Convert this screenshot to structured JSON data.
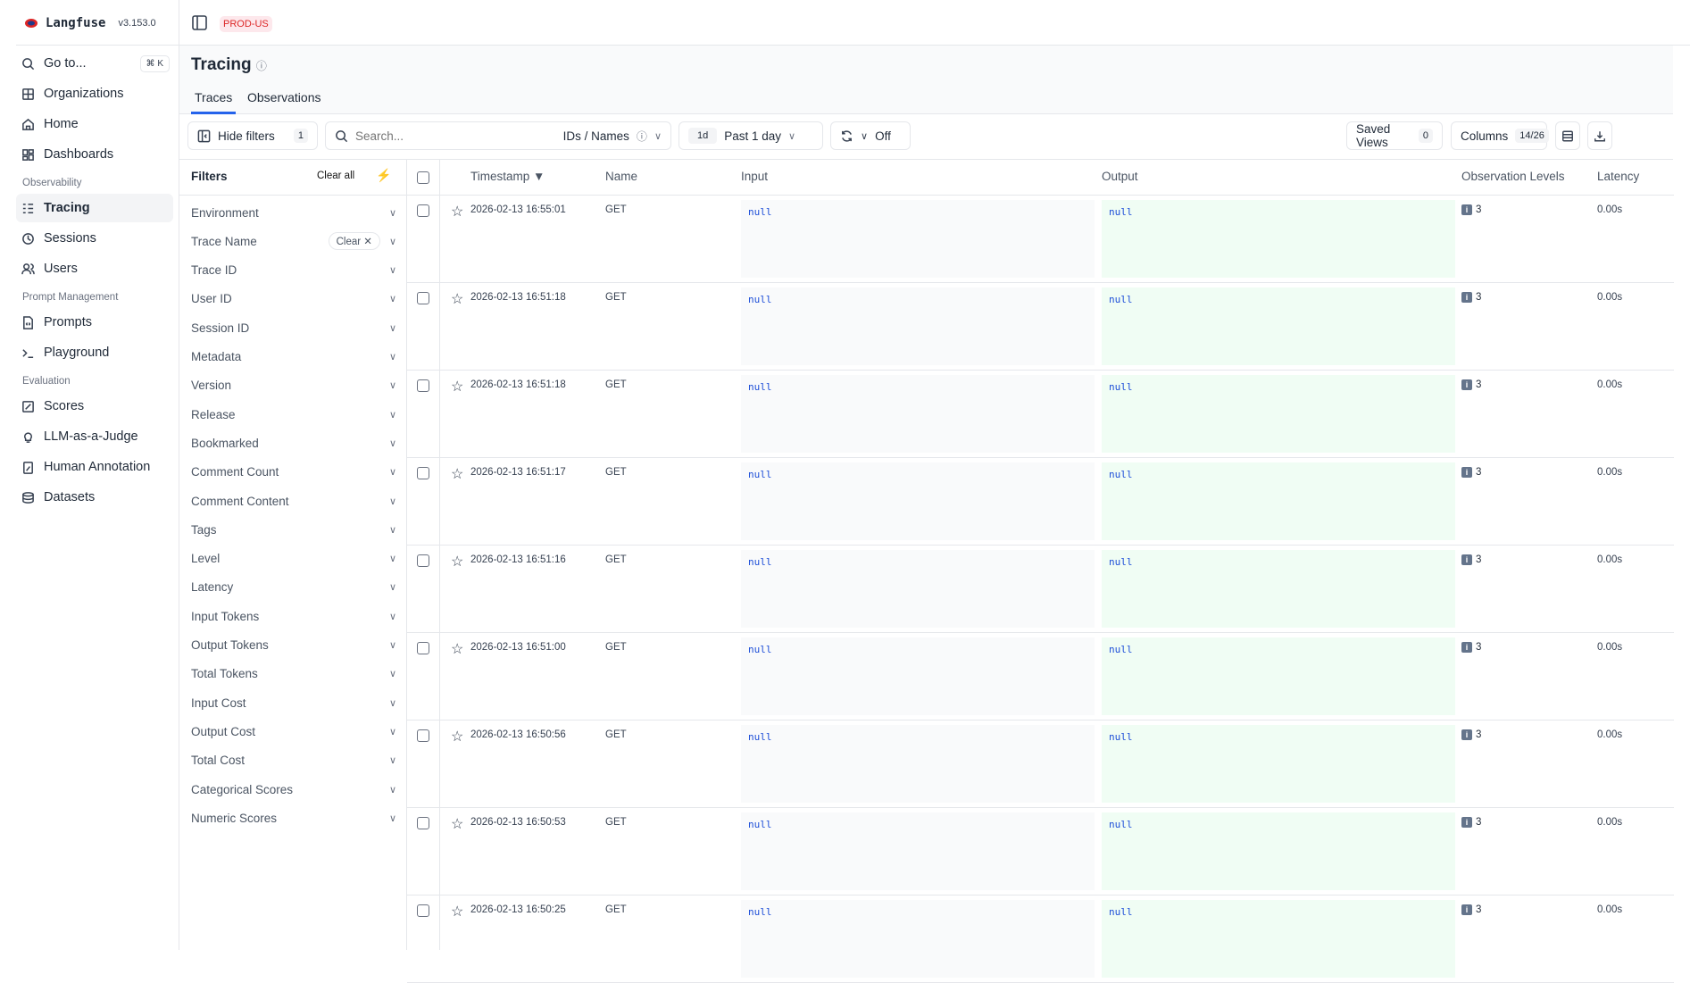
{
  "app": {
    "name": "Langfuse",
    "version": "v3.153.0",
    "environment": "PROD-US"
  },
  "sidebar": {
    "goto": {
      "label": "Go to...",
      "shortcut": "⌘ K"
    },
    "top": [
      {
        "label": "Organizations",
        "icon": "grid-icon"
      },
      {
        "label": "Home",
        "icon": "home-icon"
      },
      {
        "label": "Dashboards",
        "icon": "dashboard-icon"
      }
    ],
    "sections": [
      {
        "label": "Observability",
        "items": [
          {
            "label": "Tracing",
            "active": true
          },
          {
            "label": "Sessions"
          },
          {
            "label": "Users"
          }
        ]
      },
      {
        "label": "Prompt Management",
        "items": [
          {
            "label": "Prompts"
          },
          {
            "label": "Playground"
          }
        ]
      },
      {
        "label": "Evaluation",
        "items": [
          {
            "label": "Scores"
          },
          {
            "label": "LLM-as-a-Judge"
          },
          {
            "label": "Human Annotation"
          },
          {
            "label": "Datasets"
          }
        ]
      }
    ]
  },
  "page": {
    "title": "Tracing",
    "tabs": [
      {
        "label": "Traces",
        "active": true
      },
      {
        "label": "Observations"
      }
    ]
  },
  "toolbar": {
    "hide_filters": "Hide filters",
    "filter_count": "1",
    "search_placeholder": "Search...",
    "search_mode": "IDs / Names",
    "range_badge": "1d",
    "range_label": "Past 1 day",
    "refresh_label": "Off",
    "saved_views": "Saved Views",
    "saved_views_count": "0",
    "columns": "Columns",
    "columns_count": "14/26"
  },
  "filters": {
    "title": "Filters",
    "clear_all": "Clear all",
    "clear_pill": "Clear",
    "items": [
      "Environment",
      "Trace Name",
      "Trace ID",
      "User ID",
      "Session ID",
      "Metadata",
      "Version",
      "Release",
      "Bookmarked",
      "Comment Count",
      "Comment Content",
      "Tags",
      "Level",
      "Latency",
      "Input Tokens",
      "Output Tokens",
      "Total Tokens",
      "Input Cost",
      "Output Cost",
      "Total Cost",
      "Categorical Scores",
      "Numeric Scores"
    ]
  },
  "table": {
    "columns": [
      "Timestamp ▼",
      "Name",
      "Input",
      "Output",
      "Observation Levels",
      "Latency"
    ],
    "rows": [
      {
        "timestamp": "2026-02-13 16:55:01",
        "name": "GET",
        "input": "null",
        "output": "null",
        "levels": "3",
        "latency": "0.00s"
      },
      {
        "timestamp": "2026-02-13 16:51:18",
        "name": "GET",
        "input": "null",
        "output": "null",
        "levels": "3",
        "latency": "0.00s"
      },
      {
        "timestamp": "2026-02-13 16:51:18",
        "name": "GET",
        "input": "null",
        "output": "null",
        "levels": "3",
        "latency": "0.00s"
      },
      {
        "timestamp": "2026-02-13 16:51:17",
        "name": "GET",
        "input": "null",
        "output": "null",
        "levels": "3",
        "latency": "0.00s"
      },
      {
        "timestamp": "2026-02-13 16:51:16",
        "name": "GET",
        "input": "null",
        "output": "null",
        "levels": "3",
        "latency": "0.00s"
      },
      {
        "timestamp": "2026-02-13 16:51:00",
        "name": "GET",
        "input": "null",
        "output": "null",
        "levels": "3",
        "latency": "0.00s"
      },
      {
        "timestamp": "2026-02-13 16:50:56",
        "name": "GET",
        "input": "null",
        "output": "null",
        "levels": "3",
        "latency": "0.00s"
      },
      {
        "timestamp": "2026-02-13 16:50:53",
        "name": "GET",
        "input": "null",
        "output": "null",
        "levels": "3",
        "latency": "0.00s"
      },
      {
        "timestamp": "2026-02-13 16:50:25",
        "name": "GET",
        "input": "null",
        "output": "null",
        "levels": "3",
        "latency": "0.00s"
      }
    ]
  },
  "colors": {
    "accent": "#2563eb",
    "env_bg": "#fde8ec",
    "env_text": "#dc2626",
    "output_bg": "#f0fdf4",
    "input_bg": "#f9fafb"
  }
}
